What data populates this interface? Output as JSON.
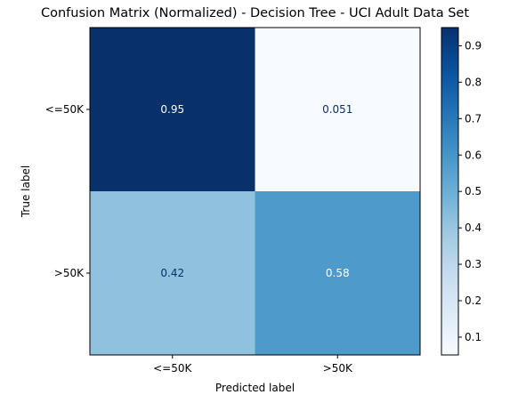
{
  "chart_data": {
    "type": "heatmap",
    "title": "Confusion Matrix (Normalized) - Decision Tree - UCI Adult Data Set",
    "xlabel": "Predicted label",
    "ylabel": "True label",
    "x_categories": [
      "<=50K",
      ">50K"
    ],
    "y_categories": [
      "<=50K",
      ">50K"
    ],
    "values": [
      [
        0.95,
        0.051
      ],
      [
        0.42,
        0.58
      ]
    ],
    "value_labels": [
      [
        "0.95",
        "0.051"
      ],
      [
        "0.42",
        "0.58"
      ]
    ],
    "colormap": "Blues",
    "color_range": [
      0.051,
      0.95
    ],
    "colorbar_ticks": [
      "0.1",
      "0.2",
      "0.3",
      "0.4",
      "0.5",
      "0.6",
      "0.7",
      "0.8",
      "0.9"
    ]
  }
}
